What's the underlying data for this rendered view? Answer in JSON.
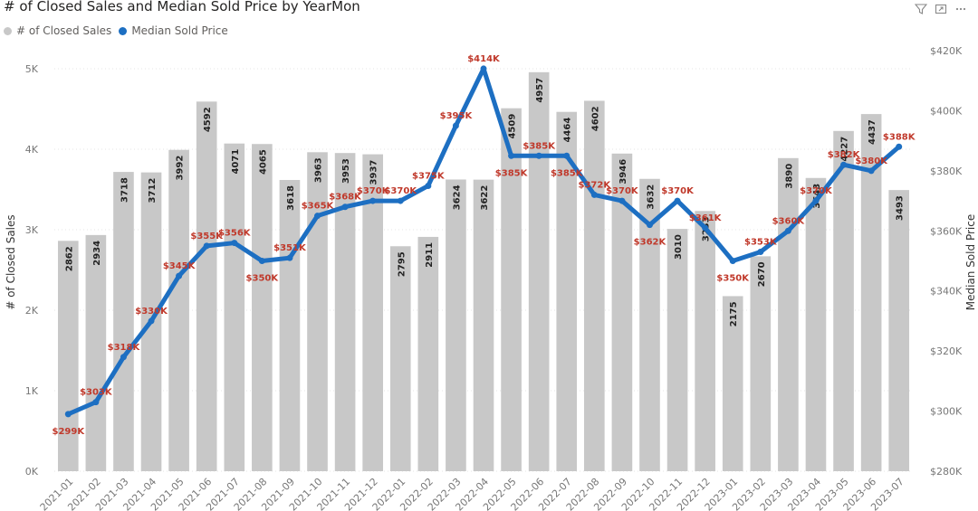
{
  "title": "# of Closed Sales and Median Sold Price by YearMon",
  "legend": {
    "bar_label": "# of Closed Sales",
    "line_label": "Median Sold Price"
  },
  "colors": {
    "bar": "#c8c8c8",
    "line": "#1d6fc2",
    "line_label": "#c0392b"
  },
  "icons": [
    "filter-icon",
    "focus-mode-icon",
    "more-options-icon"
  ],
  "chart_data": {
    "type": "bar",
    "title": "# of Closed Sales and Median Sold Price by YearMon",
    "xlabel": "",
    "ylabel": "# of Closed Sales",
    "y2label": "Median Sold Price",
    "ylim": [
      0,
      5000
    ],
    "y2lim": [
      280000,
      420000
    ],
    "y_ticks": [
      "0K",
      "1K",
      "2K",
      "3K",
      "4K",
      "5K"
    ],
    "y2_ticks": [
      "$280K",
      "$300K",
      "$320K",
      "$340K",
      "$360K",
      "$380K",
      "$400K",
      "$420K"
    ],
    "categories": [
      "2021-01",
      "2021-02",
      "2021-03",
      "2021-04",
      "2021-05",
      "2021-06",
      "2021-07",
      "2021-08",
      "2021-09",
      "2021-10",
      "2021-11",
      "2021-12",
      "2022-01",
      "2022-02",
      "2022-03",
      "2022-04",
      "2022-05",
      "2022-06",
      "2022-07",
      "2022-08",
      "2022-09",
      "2022-10",
      "2022-11",
      "2022-12",
      "2023-01",
      "2023-02",
      "2023-03",
      "2023-04",
      "2023-05",
      "2023-06",
      "2023-07"
    ],
    "series": [
      {
        "name": "# of Closed Sales",
        "type": "bar",
        "values": [
          2862,
          2934,
          3718,
          3712,
          3992,
          4592,
          4071,
          4065,
          3618,
          3963,
          3953,
          3937,
          2795,
          2911,
          3624,
          3622,
          4509,
          4957,
          4464,
          4602,
          3946,
          3632,
          3010,
          3233,
          2175,
          2670,
          3890,
          3643,
          4227,
          4437,
          3493
        ],
        "labels": [
          "2862",
          "2934",
          "3718",
          "3712",
          "3992",
          "4592",
          "4071",
          "4065",
          "3618",
          "3963",
          "3953",
          "3937",
          "2795",
          "2911",
          "3624",
          "3622",
          "4509",
          "4957",
          "4464",
          "4602",
          "3946",
          "3632",
          "3010",
          "3233",
          "2175",
          "2670",
          "3890",
          "3643",
          "4227",
          "4437",
          "3493"
        ]
      },
      {
        "name": "Median Sold Price",
        "type": "line",
        "values": [
          299000,
          303000,
          318000,
          330000,
          345000,
          355000,
          356000,
          350000,
          351000,
          365000,
          368000,
          370000,
          370000,
          375000,
          395000,
          414000,
          385000,
          385000,
          385000,
          372000,
          370000,
          362000,
          370000,
          361000,
          350000,
          353000,
          360000,
          370000,
          382000,
          380000,
          388000
        ],
        "labels": [
          "$299K",
          "$303K",
          "$318K",
          "$330K",
          "$345K",
          "$355K",
          "$356K",
          "$350K",
          "$351K",
          "$365K",
          "$368K",
          "$370K",
          "$370K",
          "$375K",
          "$395K",
          "$414K",
          "$385K",
          "$385K",
          "$385K",
          "$372K",
          "$370K",
          "$362K",
          "$370K",
          "$361K",
          "$350K",
          "$353K",
          "$360K",
          "$370K",
          "$382K",
          "$380K",
          "$388K"
        ]
      }
    ]
  }
}
